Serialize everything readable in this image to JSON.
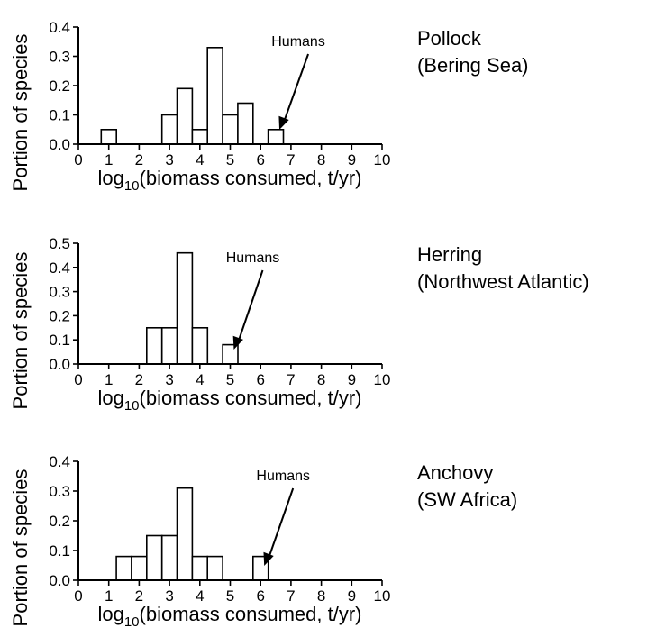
{
  "chart_data": [
    {
      "type": "bar",
      "title_lines": [
        "Pollock",
        "(Bering Sea)"
      ],
      "ylabel": "Portion of species",
      "xlabel_prefix": "log",
      "xlabel_sub": "10",
      "xlabel_suffix": "(biomass consumed, t/yr)",
      "xlim": [
        0,
        10
      ],
      "ylim": [
        0,
        0.4
      ],
      "xticks": [
        "0",
        "1",
        "2",
        "3",
        "4",
        "5",
        "6",
        "7",
        "8",
        "9",
        "10"
      ],
      "yticks": [
        "0.0",
        "0.1",
        "0.2",
        "0.3",
        "0.4"
      ],
      "bin_width": 0.5,
      "x": [
        1.0,
        3.0,
        3.5,
        4.0,
        4.5,
        5.0,
        5.5,
        6.5
      ],
      "values": [
        0.05,
        0.1,
        0.19,
        0.05,
        0.33,
        0.1,
        0.14,
        0.05
      ],
      "annotation": {
        "text": "Humans",
        "x": 6.5
      }
    },
    {
      "type": "bar",
      "title_lines": [
        "Herring",
        "(Northwest Atlantic)"
      ],
      "ylabel": "Portion of species",
      "xlabel_prefix": "log",
      "xlabel_sub": "10",
      "xlabel_suffix": "(biomass consumed, t/yr)",
      "xlim": [
        0,
        10
      ],
      "ylim": [
        0,
        0.5
      ],
      "xticks": [
        "0",
        "1",
        "2",
        "3",
        "4",
        "5",
        "6",
        "7",
        "8",
        "9",
        "10"
      ],
      "yticks": [
        "0.0",
        "0.1",
        "0.2",
        "0.3",
        "0.4",
        "0.5"
      ],
      "bin_width": 0.5,
      "x": [
        2.5,
        3.0,
        3.5,
        4.0,
        5.0
      ],
      "values": [
        0.15,
        0.15,
        0.46,
        0.15,
        0.08
      ],
      "annotation": {
        "text": "Humans",
        "x": 5.0
      }
    },
    {
      "type": "bar",
      "title_lines": [
        "Anchovy",
        "(SW Africa)"
      ],
      "ylabel": "Portion of species",
      "xlabel_prefix": "log",
      "xlabel_sub": "10",
      "xlabel_suffix": "(biomass consumed, t/yr)",
      "xlim": [
        0,
        10
      ],
      "ylim": [
        0,
        0.4
      ],
      "xticks": [
        "0",
        "1",
        "2",
        "3",
        "4",
        "5",
        "6",
        "7",
        "8",
        "9",
        "10"
      ],
      "yticks": [
        "0.0",
        "0.1",
        "0.2",
        "0.3",
        "0.4"
      ],
      "bin_width": 0.5,
      "x": [
        1.5,
        2.0,
        2.5,
        3.0,
        3.5,
        4.0,
        4.5,
        6.0
      ],
      "values": [
        0.08,
        0.08,
        0.15,
        0.15,
        0.31,
        0.08,
        0.08,
        0.08
      ],
      "annotation": {
        "text": "Humans",
        "x": 6.0
      }
    }
  ]
}
